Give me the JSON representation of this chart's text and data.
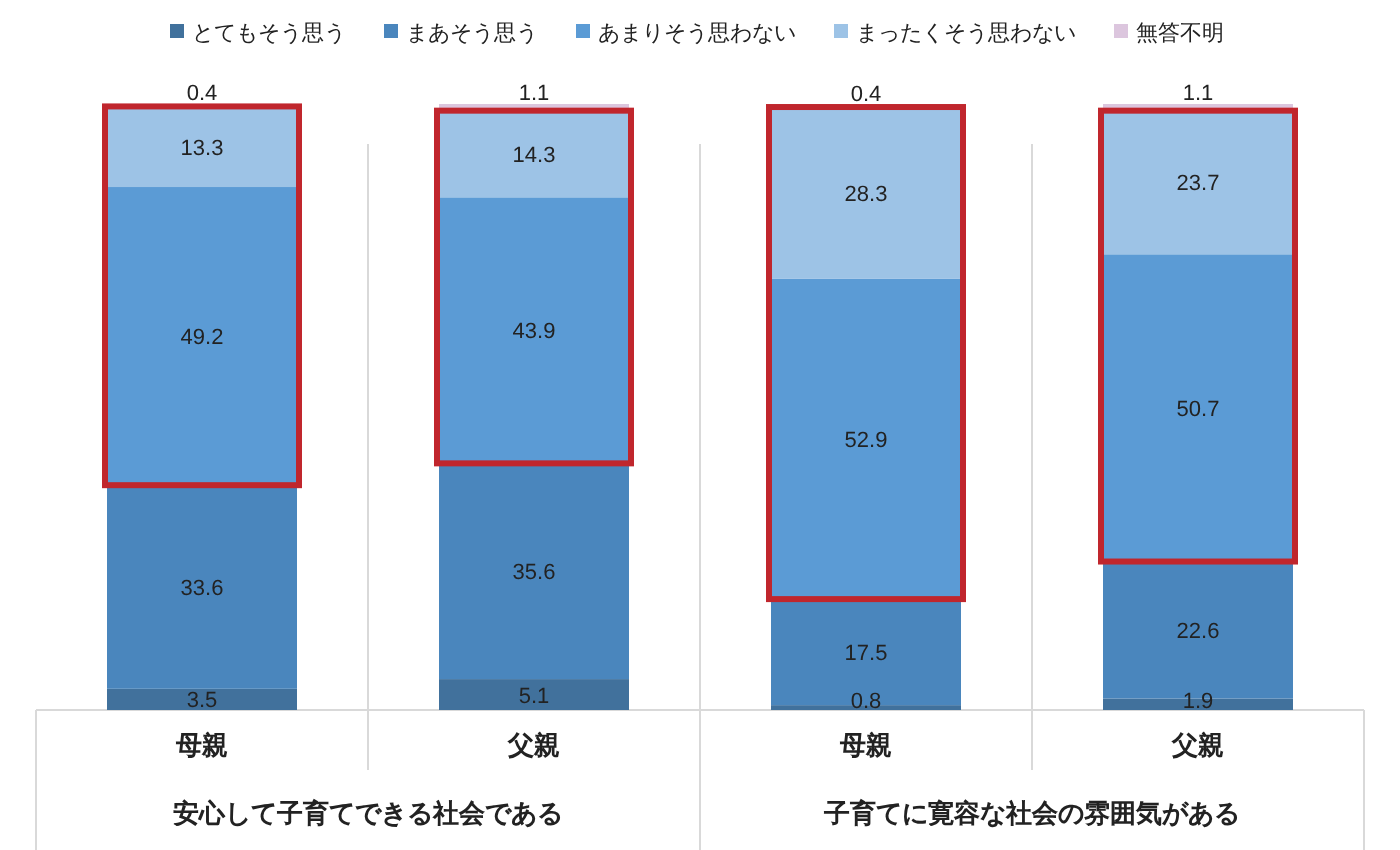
{
  "chart_data": {
    "type": "bar",
    "stacked": true,
    "data_labels": true,
    "legend": "top",
    "categories": [
      "母親",
      "父親",
      "母親",
      "父親"
    ],
    "annotations": [
      "安心して子育てできる社会である",
      "子育てに寛容な社会の雰囲気がある"
    ],
    "series": [
      {
        "name": "とてもそう思う",
        "color": "#41719c",
        "values": [
          3.5,
          5.1,
          0.8,
          1.9
        ]
      },
      {
        "name": "まあそう思う",
        "color": "#4a86bd",
        "values": [
          33.6,
          35.6,
          17.5,
          22.6
        ]
      },
      {
        "name": "あまりそう思わない",
        "color": "#5b9bd5",
        "values": [
          49.2,
          43.9,
          52.9,
          50.7
        ]
      },
      {
        "name": "まったくそう思わない",
        "color": "#9dc3e6",
        "values": [
          13.3,
          14.3,
          28.3,
          23.7
        ]
      },
      {
        "name": "無答不明",
        "color": "#dcc6de",
        "values": [
          0.4,
          1.1,
          0.4,
          1.1
        ]
      }
    ]
  }
}
